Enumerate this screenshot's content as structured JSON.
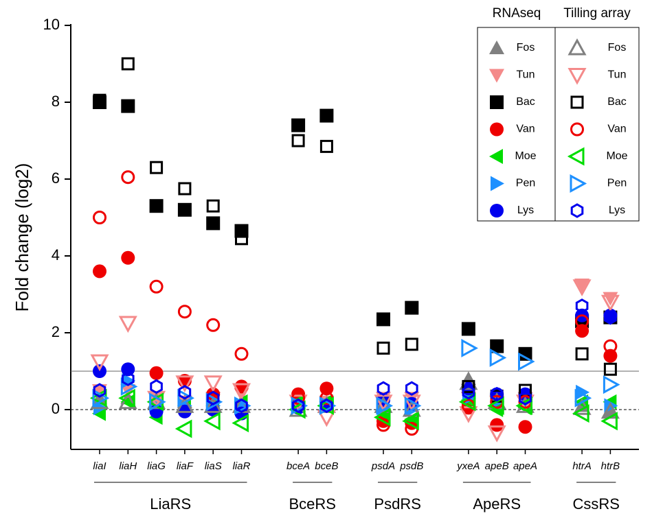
{
  "chart_data": {
    "type": "scatter",
    "y_label": "Fold change (log2)",
    "ylim": [
      -1,
      10
    ],
    "yticks": [
      0,
      2,
      4,
      6,
      8,
      10
    ],
    "categories": [
      "liaI",
      "liaH",
      "liaG",
      "liaF",
      "liaS",
      "liaR",
      null,
      "bceA",
      "bceB",
      null,
      "psdA",
      "psdB",
      null,
      "yxeA",
      "apeB",
      "apeA",
      null,
      "htrA",
      "htrB"
    ],
    "groups": [
      "LiaRS",
      "BceRS",
      "PsdRS",
      "ApeRS",
      "CssRS"
    ],
    "hlines": [
      {
        "value": 1,
        "style": "solid"
      },
      {
        "value": 0,
        "style": "dashed"
      }
    ],
    "series_groups": [
      {
        "name": "RNAseq",
        "filled": true,
        "series": [
          {
            "name": "Fos",
            "color": "#808080",
            "marker": "triangle-up",
            "values": [
              0.3,
              0.3,
              0.2,
              0.2,
              0.1,
              0.2,
              null,
              0.1,
              0.2,
              null,
              0.1,
              0.1,
              null,
              0.8,
              0.2,
              0.2,
              null,
              0.1,
              -0.05
            ]
          },
          {
            "name": "Tun",
            "color": "#f48a8a",
            "marker": "triangle-down",
            "values": [
              0.5,
              0.5,
              0.3,
              0.2,
              0.3,
              0.4,
              null,
              0.2,
              0.2,
              null,
              0.3,
              0.3,
              null,
              0.3,
              0.2,
              0.3,
              null,
              3.25,
              2.9
            ]
          },
          {
            "name": "Bac",
            "color": "#000000",
            "marker": "square",
            "values": [
              8.0,
              7.9,
              5.3,
              5.2,
              4.85,
              4.65,
              null,
              7.4,
              7.65,
              null,
              2.35,
              2.65,
              null,
              2.1,
              1.65,
              1.45,
              null,
              2.3,
              2.4
            ]
          },
          {
            "name": "Van",
            "color": "#ee0000",
            "marker": "circle",
            "values": [
              3.6,
              3.95,
              0.95,
              0.75,
              0.4,
              0.6,
              null,
              0.4,
              0.55,
              null,
              -0.3,
              -0.35,
              null,
              0.05,
              -0.4,
              -0.45,
              null,
              2.05,
              1.4
            ]
          },
          {
            "name": "Moe",
            "color": "#00dd00",
            "marker": "triangle-left",
            "values": [
              -0.1,
              0.2,
              -0.2,
              0.1,
              0.1,
              0.2,
              null,
              0.2,
              0.2,
              null,
              -0.1,
              -0.25,
              null,
              0.25,
              0.0,
              0.05,
              null,
              0.2,
              0.2
            ]
          },
          {
            "name": "Pen",
            "color": "#1e90ff",
            "marker": "triangle-right",
            "values": [
              0.05,
              0.75,
              0.1,
              0.1,
              0.1,
              0.1,
              null,
              0.1,
              0.1,
              null,
              0.0,
              0.0,
              null,
              0.3,
              0.2,
              0.2,
              null,
              0.45,
              0.1
            ]
          },
          {
            "name": "Lys",
            "color": "#0000ee",
            "marker": "circle",
            "values": [
              1.0,
              1.05,
              -0.05,
              -0.05,
              0.0,
              -0.1,
              null,
              0.05,
              0.1,
              null,
              0.25,
              0.15,
              null,
              0.55,
              0.4,
              0.4,
              null,
              2.45,
              2.45
            ]
          }
        ]
      },
      {
        "name": "Tilling array",
        "filled": false,
        "series": [
          {
            "name": "Fos",
            "color": "#808080",
            "marker": "triangle-up",
            "values": [
              0.2,
              0.2,
              0.2,
              0.1,
              0.1,
              0.1,
              null,
              0.0,
              0.1,
              null,
              0.1,
              0.0,
              null,
              0.7,
              0.2,
              0.1,
              null,
              0.05,
              -0.05
            ]
          },
          {
            "name": "Tun",
            "color": "#f48a8a",
            "marker": "triangle-down",
            "values": [
              1.25,
              2.25,
              0.3,
              0.7,
              0.7,
              0.5,
              null,
              0.2,
              -0.2,
              null,
              0.2,
              0.2,
              null,
              -0.1,
              -0.6,
              0.2,
              null,
              3.2,
              2.8
            ]
          },
          {
            "name": "Bac",
            "color": "#000000",
            "marker": "square",
            "values": [
              8.05,
              9.0,
              6.3,
              5.75,
              5.3,
              4.45,
              null,
              7.0,
              6.85,
              null,
              1.6,
              1.7,
              null,
              0.6,
              0.35,
              0.5,
              null,
              1.45,
              1.05
            ]
          },
          {
            "name": "Van",
            "color": "#ee0000",
            "marker": "circle",
            "values": [
              5.0,
              6.05,
              3.2,
              2.55,
              2.2,
              1.45,
              null,
              0.3,
              0.3,
              null,
              -0.4,
              -0.5,
              null,
              0.1,
              0.2,
              0.2,
              null,
              2.3,
              1.65
            ]
          },
          {
            "name": "Moe",
            "color": "#00dd00",
            "marker": "triangle-left",
            "values": [
              0.3,
              0.3,
              0.2,
              -0.5,
              -0.3,
              -0.35,
              null,
              0.0,
              0.1,
              null,
              -0.2,
              -0.3,
              null,
              0.2,
              0.1,
              0.1,
              null,
              -0.1,
              -0.3
            ]
          },
          {
            "name": "Pen",
            "color": "#1e90ff",
            "marker": "triangle-right",
            "values": [
              0.3,
              0.6,
              0.2,
              0.3,
              0.2,
              0.1,
              null,
              0.1,
              0.1,
              null,
              0.1,
              0.1,
              null,
              1.6,
              1.35,
              1.25,
              null,
              0.3,
              0.65
            ]
          },
          {
            "name": "Lys",
            "color": "#0000ee",
            "marker": "hexagon",
            "values": [
              0.5,
              0.8,
              0.6,
              0.45,
              0.3,
              0.1,
              null,
              0.1,
              0.1,
              null,
              0.55,
              0.55,
              null,
              0.45,
              0.4,
              0.3,
              null,
              2.7,
              2.4
            ]
          }
        ]
      }
    ]
  }
}
